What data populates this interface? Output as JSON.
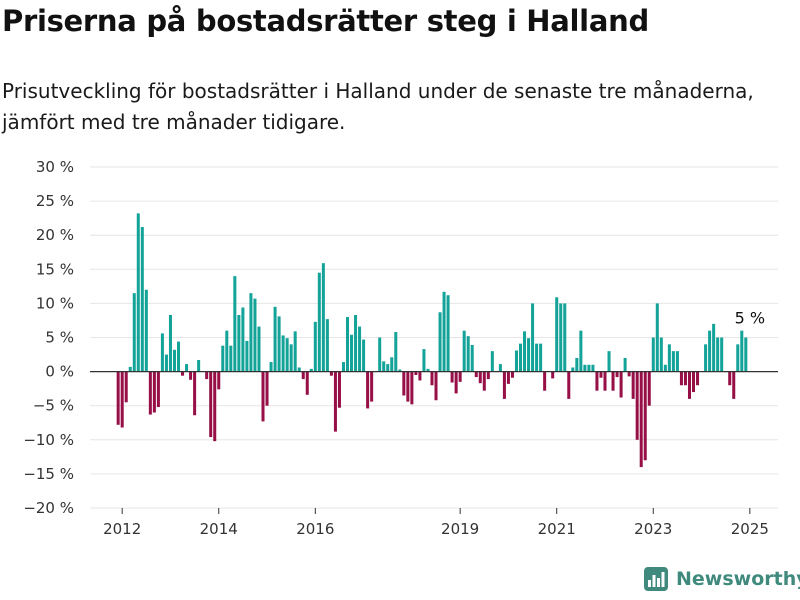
{
  "header": {
    "title": "Priserna på bostadsrätter steg i Halland",
    "subtitle": "Prisutveckling för bostadsrätter i Halland under de senaste tre månaderna, jämfört med tre månader tidigare."
  },
  "brand": {
    "name": "Newsworthy",
    "icon": "bar-chart-icon"
  },
  "colors": {
    "positive": "#14a399",
    "negative": "#970f47",
    "grid": "#e6e6e6",
    "zero": "#333333"
  },
  "chart_data": {
    "type": "bar",
    "title": "Priserna på bostadsrätter steg i Halland",
    "subtitle": "Prisutveckling för bostadsrätter i Halland under de senaste tre månaderna, jämfört med tre månader tidigare.",
    "xlabel": "",
    "ylabel": "",
    "ylim": [
      -20,
      30
    ],
    "xlim": [
      "2011-05",
      "2025-08"
    ],
    "yticks": [
      -20,
      -15,
      -10,
      -5,
      0,
      5,
      10,
      15,
      20,
      25,
      30
    ],
    "ytick_labels": [
      "−20 %",
      "−15 %",
      "−10 %",
      "−5 %",
      "0 %",
      "5 %",
      "10 %",
      "15 %",
      "20 %",
      "25 %",
      "30 %"
    ],
    "xtick_labels": [
      "2012",
      "2014",
      "2016",
      "2019",
      "2021",
      "2023",
      "2025"
    ],
    "grid": true,
    "unit": "%",
    "annotation": {
      "text": "5 %",
      "date": "2025-01"
    },
    "series": [
      {
        "start": "2011-12",
        "values": [
          -7.8,
          -8.2,
          -4.5,
          0.7,
          11.5,
          23.2,
          21.2,
          12,
          -6.3,
          -6,
          -5.2,
          5.6,
          2.5,
          8.3,
          3.2,
          4.4,
          -0.6,
          1.1,
          -1.2,
          -6.4,
          1.7,
          null,
          -1.1,
          -9.6,
          -10.2,
          -2.6,
          3.8,
          6,
          3.8,
          14,
          8.3,
          9.4,
          4.5,
          11.5,
          10.7,
          6.6,
          -7.3,
          -5,
          1.4,
          9.5,
          8.1,
          5.3,
          4.9,
          4,
          5.9,
          0.6,
          -1.1,
          -3.4,
          0.4,
          7.3,
          14.5,
          15.9,
          7.7,
          -0.6,
          -8.8,
          -5.3,
          1.4,
          8,
          5.4,
          8.3,
          6.6,
          4.7,
          -5.4,
          -4.4,
          null,
          5,
          1.5,
          1.1,
          2.1,
          5.8,
          0.3,
          -3.5,
          -4.4,
          -4.8,
          -0.5,
          -1.3,
          3.3,
          0.4,
          -2,
          -4.2,
          8.7,
          11.7,
          11.2,
          -1.6,
          -3.2,
          -1.5,
          6,
          5.2,
          3.9,
          -0.8,
          -1.7,
          -2.8,
          -1.1,
          3,
          0.1,
          1.1,
          -4,
          -1.8,
          -0.9,
          3.1,
          4.1,
          5.9,
          4.9,
          10,
          4.1,
          4.1,
          -2.8,
          0.1,
          -1,
          10.9,
          10,
          10,
          -4,
          0.6,
          2,
          6,
          1,
          1,
          1,
          -2.8,
          -0.9,
          -2.8,
          3,
          -2.8,
          -0.8,
          -3.8,
          2,
          -0.7,
          -4,
          -10,
          -14,
          -13,
          -5,
          5,
          10,
          5,
          1,
          4,
          3,
          3,
          -2,
          -2,
          -4,
          -3,
          -2,
          null,
          4,
          6,
          7,
          5,
          5,
          0,
          -2,
          -4,
          4,
          6,
          5
        ]
      }
    ]
  }
}
